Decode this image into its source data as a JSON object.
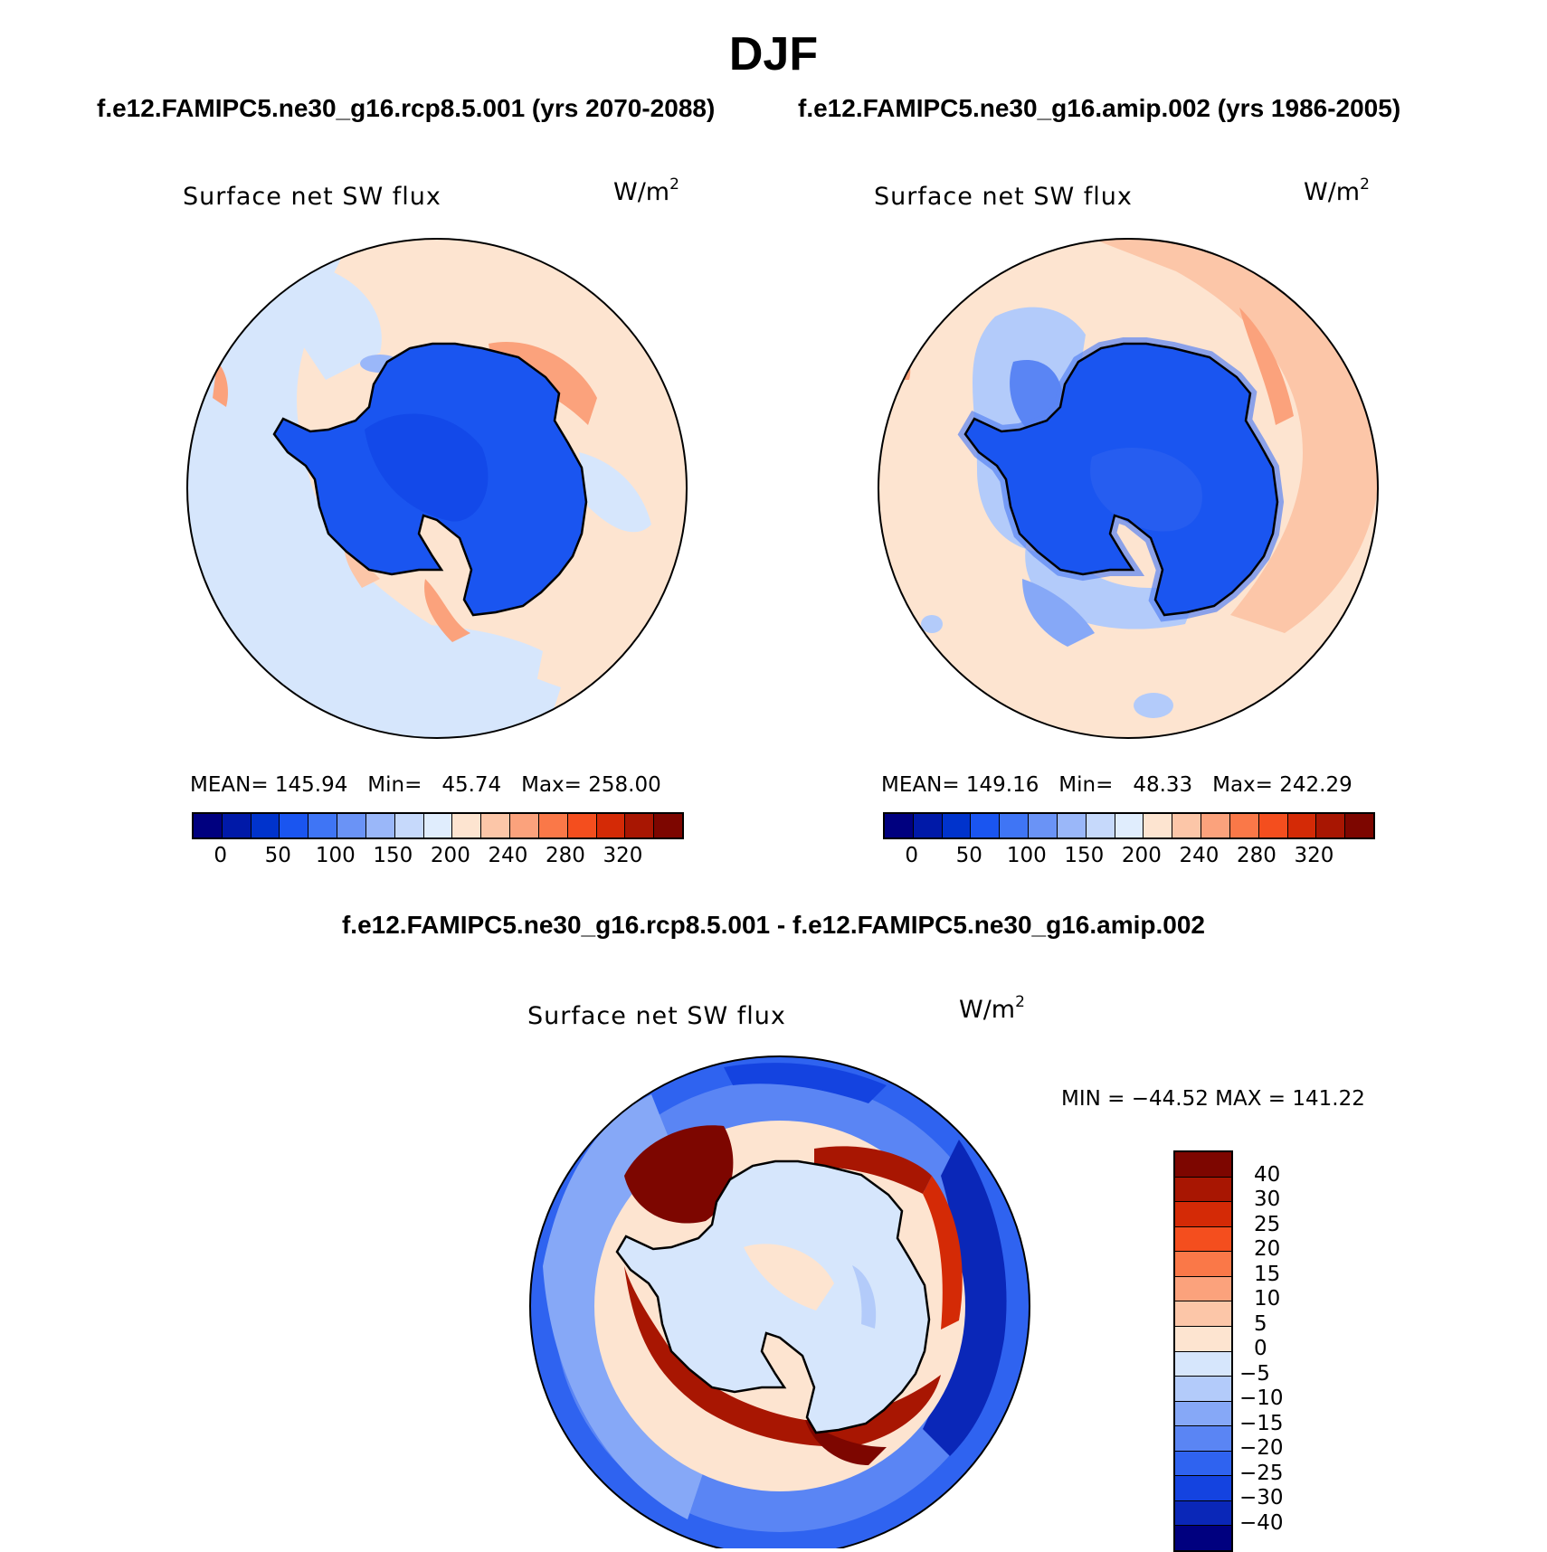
{
  "title": "DJF",
  "subtitles": {
    "left": "f.e12.FAMIPC5.ne30_g16.rcp8.5.001 (yrs 2070-2088)",
    "right": "f.e12.FAMIPC5.ne30_g16.amip.002 (yrs 1986-2005)"
  },
  "panels": [
    {
      "variable": "Surface net SW flux",
      "units_base": "W/m",
      "units_exp": "2",
      "stats": "MEAN= 145.94   Min=   45.74   Max= 258.00"
    },
    {
      "variable": "Surface net SW flux",
      "units_base": "W/m",
      "units_exp": "2",
      "stats": "MEAN= 149.16   Min=   48.33   Max= 242.29"
    }
  ],
  "diff_panel": {
    "title": "f.e12.FAMIPC5.ne30_g16.rcp8.5.001 - f.e12.FAMIPC5.ne30_g16.amip.002",
    "variable": "Surface net SW flux",
    "units_base": "W/m",
    "units_exp": "2",
    "stats": "MIN = −44.52 MAX = 141.22"
  },
  "colorbar_abs": {
    "colors": [
      "#00007f",
      "#0019a8",
      "#0033cc",
      "#1a55f0",
      "#3f75f5",
      "#6a93f6",
      "#9ab7f9",
      "#c6d9fb",
      "#e0edfd",
      "#fde4d0",
      "#fcc6a8",
      "#fba27c",
      "#fa7848",
      "#f44e1e",
      "#d42a06",
      "#a81602",
      "#7d0600"
    ],
    "ticks": [
      "0",
      "50",
      "100",
      "150",
      "200",
      "240",
      "280",
      "320"
    ]
  },
  "colorbar_diff": {
    "colors": [
      "#7d0600",
      "#a81602",
      "#d42a06",
      "#f44e1e",
      "#fa7848",
      "#fba27c",
      "#fcc6a8",
      "#fde4d0",
      "#d6e6fc",
      "#b3cbfa",
      "#86a8f7",
      "#5a85f4",
      "#2f63f0",
      "#1443e0",
      "#0a27b8",
      "#00007f"
    ],
    "labels": [
      "40",
      "30",
      "25",
      "20",
      "15",
      "10",
      "5",
      "0",
      "−5",
      "−10",
      "−15",
      "−20",
      "−25",
      "−30",
      "−40"
    ]
  }
}
